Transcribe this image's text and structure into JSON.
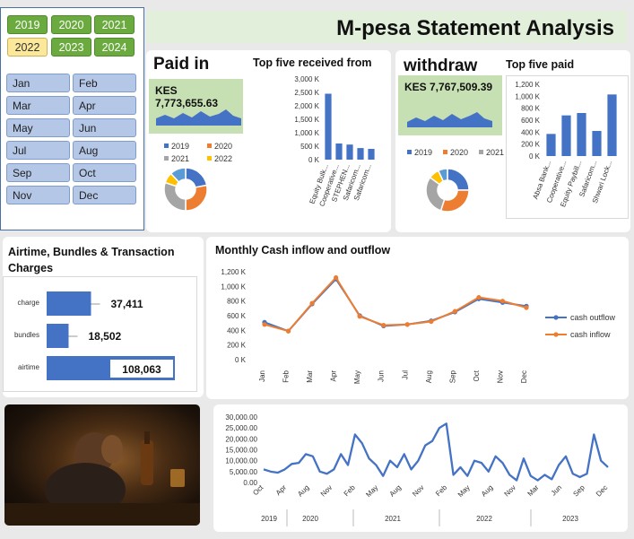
{
  "title": "M-pesa Statement Analysis",
  "years": [
    "2019",
    "2020",
    "2021",
    "2022",
    "2023",
    "2024"
  ],
  "selected_year": "2022",
  "months": [
    "Jan",
    "Feb",
    "Mar",
    "Apr",
    "May",
    "Jun",
    "Jul",
    "Aug",
    "Sep",
    "Oct",
    "Nov",
    "Dec"
  ],
  "paid_in": {
    "heading": "Paid in",
    "amount": "KES 7,773,655.63",
    "donut_legend": [
      "2019",
      "2020",
      "2021",
      "2022"
    ],
    "colors": [
      "#4472c4",
      "#ed7d31",
      "#a5a5a5",
      "#ffc000",
      "#5b9bd5"
    ]
  },
  "top_received": {
    "heading": "Top five received from",
    "chart_data": {
      "type": "bar",
      "categories": [
        "Equity Bulk...",
        "Cooperative...",
        "STEPHEN...",
        "Safaricom...",
        "Safaricom..."
      ],
      "values": [
        2450,
        600,
        560,
        430,
        400
      ],
      "ylim": [
        0,
        3000
      ],
      "yticks": [
        "3,000 K",
        "2,500 K",
        "2,000 K",
        "1,500 K",
        "1,000 K",
        "500 K",
        "0 K"
      ]
    }
  },
  "withdraw": {
    "heading": "withdraw",
    "amount": "KES 7,767,509.39",
    "donut_legend": [
      "2019",
      "2020",
      "2021"
    ]
  },
  "top_paid": {
    "heading": "Top five paid",
    "chart_data": {
      "type": "bar",
      "categories": [
        "Absa Bank...",
        "Cooperative...",
        "Equity Paybill...",
        "Safaricom...",
        "Shwari Lock..."
      ],
      "values": [
        370,
        680,
        720,
        420,
        1030
      ],
      "ylim": [
        0,
        1200
      ],
      "yticks": [
        "1,200 K",
        "1,000 K",
        "800 K",
        "600 K",
        "400 K",
        "200 K",
        "0 K"
      ]
    }
  },
  "charges": {
    "heading": "Airtime, Bundles & Transaction Charges",
    "chart_data": {
      "type": "bar",
      "categories": [
        "charge",
        "bundles",
        "airtime"
      ],
      "values": [
        37411,
        18502,
        108063
      ],
      "labels": [
        "37,411",
        "18,502",
        "108,063"
      ]
    }
  },
  "monthly": {
    "heading": "Monthly  Cash inflow and outflow",
    "chart_data": {
      "type": "line",
      "categories": [
        "Jan",
        "Feb",
        "Mar",
        "Apr",
        "May",
        "Jun",
        "Jul",
        "Aug",
        "Sep",
        "Oct",
        "Nov",
        "Dec"
      ],
      "series": [
        {
          "name": "cash outflow",
          "values": [
            510,
            390,
            760,
            1100,
            600,
            460,
            480,
            530,
            650,
            830,
            780,
            730
          ],
          "color": "#4472c4"
        },
        {
          "name": "cash inflow",
          "values": [
            480,
            390,
            770,
            1120,
            590,
            470,
            480,
            520,
            660,
            850,
            800,
            710
          ],
          "color": "#ed7d31"
        }
      ],
      "ylim": [
        0,
        1200
      ],
      "yticks": [
        "1,200 K",
        "1,000 K",
        "800 K",
        "600 K",
        "400 K",
        "200 K",
        "0 K"
      ]
    }
  },
  "timeline": {
    "chart_data": {
      "type": "line",
      "yticks": [
        "30,000.00",
        "25,000.00",
        "20,000.00",
        "15,000.00",
        "10,000.00",
        "5,000.00",
        "0.00"
      ],
      "ylim": [
        0,
        30000
      ],
      "month_ticks": [
        "Oct",
        "Apr",
        "Aug",
        "Nov",
        "Feb",
        "May",
        "Aug",
        "Nov",
        "Feb",
        "May",
        "Aug",
        "Nov",
        "Mar",
        "Jun",
        "Sep",
        "Dec"
      ],
      "year_ticks": [
        "2019",
        "2020",
        "2021",
        "2022",
        "2023"
      ],
      "values": [
        6000,
        5000,
        4500,
        6000,
        8500,
        9000,
        13000,
        12000,
        5000,
        4000,
        6000,
        13000,
        8000,
        22000,
        18000,
        11000,
        8000,
        3000,
        10000,
        7000,
        13000,
        6000,
        10000,
        17000,
        19000,
        25000,
        27000,
        3500,
        7000,
        3000,
        10000,
        9000,
        5000,
        12000,
        9000,
        3500,
        1000,
        11000,
        3000,
        1000,
        3500,
        1500,
        8000,
        12000,
        4000,
        2500,
        4000,
        22000,
        10000,
        7000
      ],
      "color": "#4472c4"
    }
  }
}
